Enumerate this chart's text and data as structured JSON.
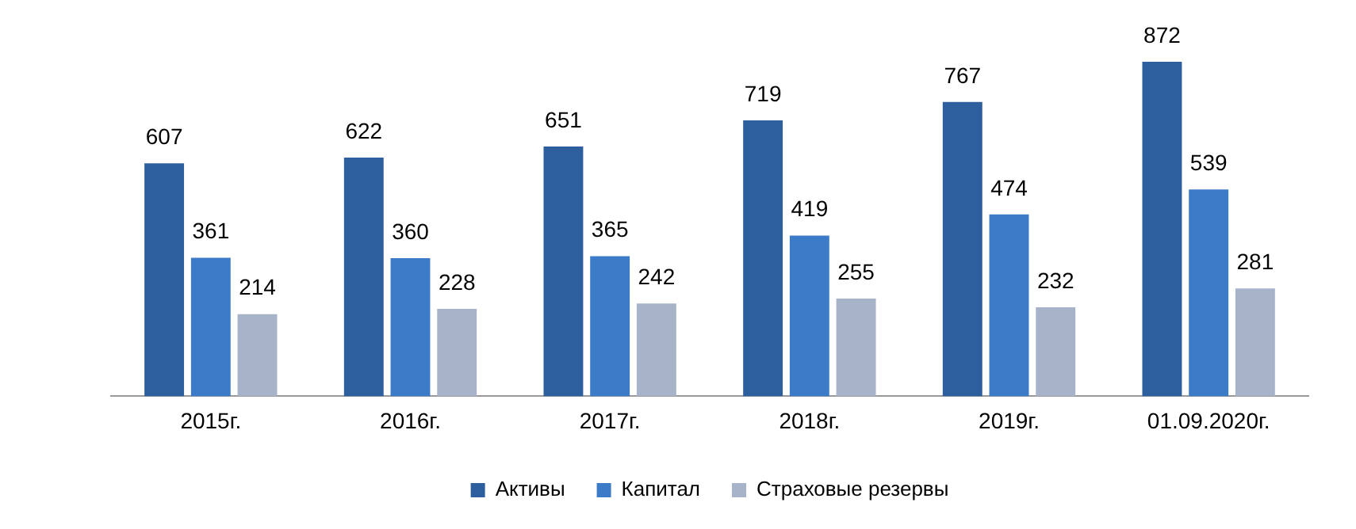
{
  "chart_data": {
    "type": "bar",
    "categories": [
      "2015г.",
      "2016г.",
      "2017г.",
      "2018г.",
      "2019г.",
      "01.09.2020г."
    ],
    "series": [
      {
        "name": "Активы",
        "color": "#2d5f9e",
        "values": [
          607,
          622,
          651,
          719,
          767,
          872
        ]
      },
      {
        "name": "Капитал",
        "color": "#3c7bc8",
        "values": [
          361,
          360,
          365,
          419,
          474,
          539
        ]
      },
      {
        "name": "Страховые резервы",
        "color": "#a7b3c9",
        "values": [
          214,
          228,
          242,
          255,
          232,
          281
        ]
      }
    ],
    "data_labels": true,
    "legend": "bottom"
  }
}
